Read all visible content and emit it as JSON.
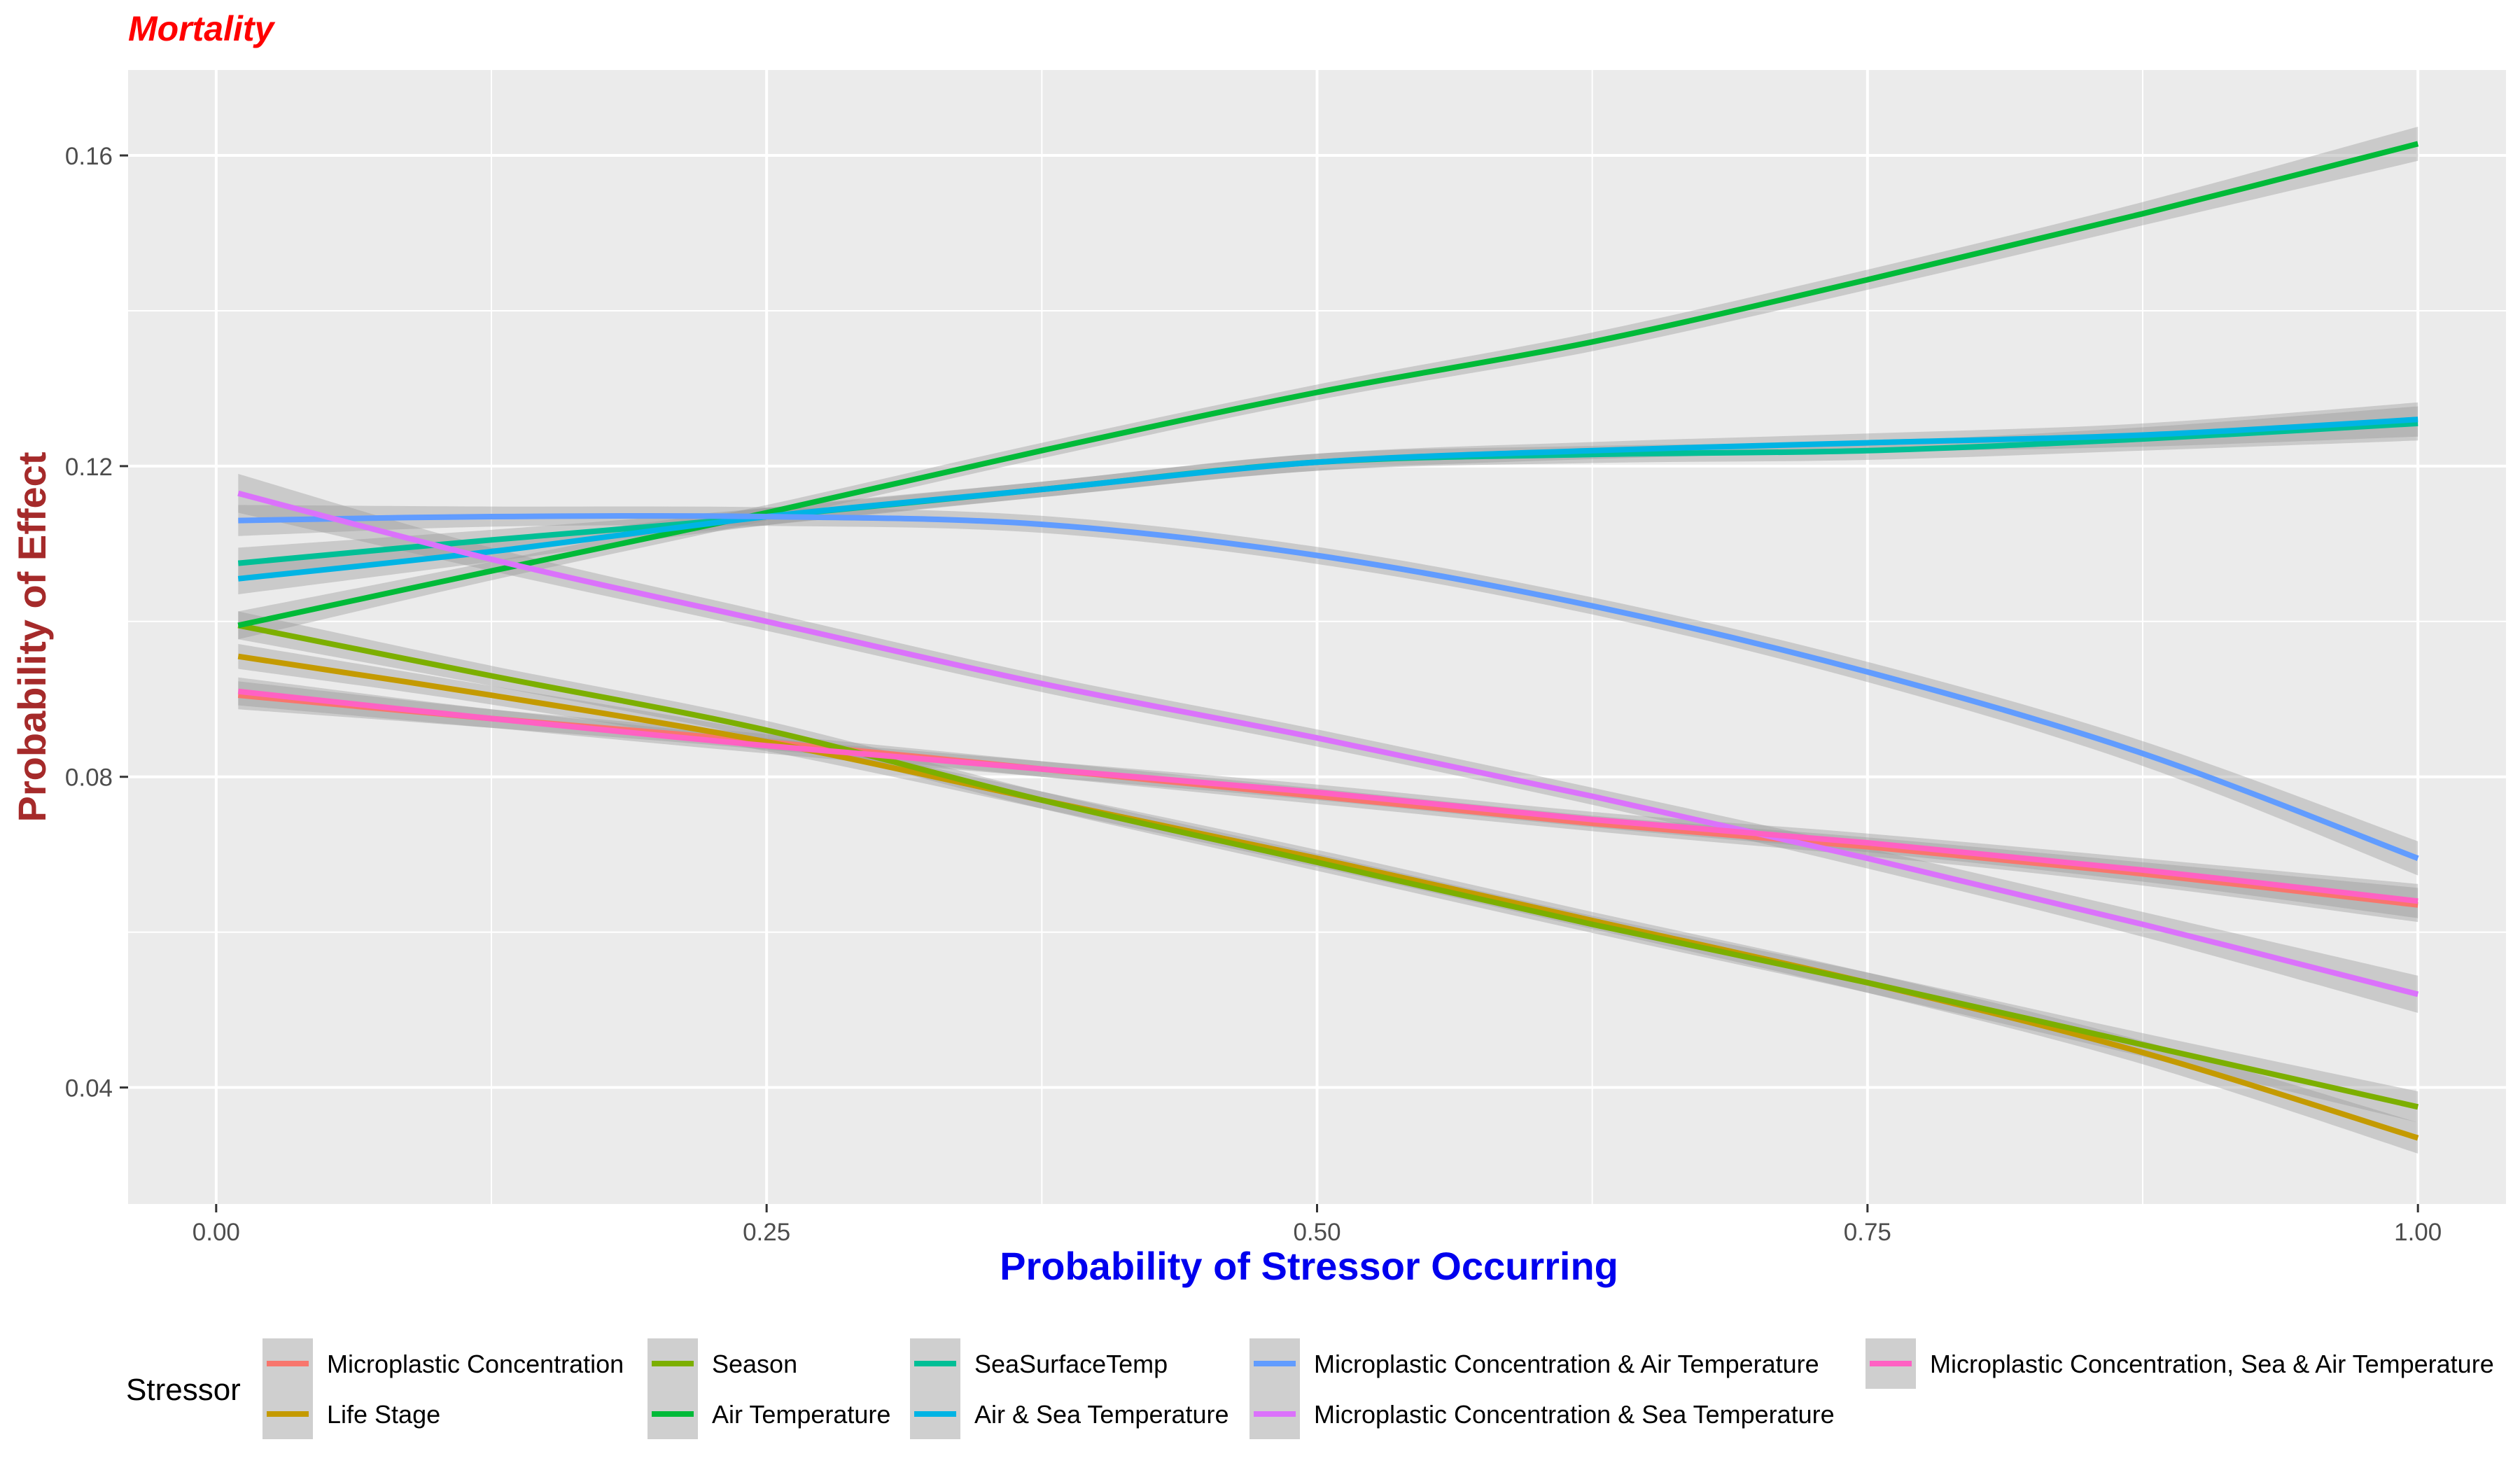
{
  "chart_data": {
    "type": "line",
    "title": "Mortality",
    "title_color": "#ff0000",
    "xlabel": "Probability of Stressor Occurring",
    "xlabel_color": "#0000ee",
    "ylabel": "Probability of Effect",
    "ylabel_color": "#a52a2a",
    "xlim": [
      -0.04,
      1.04
    ],
    "ylim": [
      0.025,
      0.171
    ],
    "xticks": [
      0.0,
      0.25,
      0.5,
      0.75,
      1.0
    ],
    "xtick_labels": [
      "0.00",
      "0.25",
      "0.50",
      "0.75",
      "1.00"
    ],
    "yticks": [
      0.04,
      0.08,
      0.12,
      0.16
    ],
    "ytick_labels": [
      "0.04",
      "0.08",
      "0.12",
      "0.16"
    ],
    "grid": true,
    "panel_background": "#ebebeb",
    "confidence_band": true,
    "legend": {
      "title": "Stressor",
      "placement": "bottom"
    },
    "x": [
      0.01,
      0.125,
      0.25,
      0.375,
      0.5,
      0.625,
      0.75,
      0.875,
      1.0
    ],
    "series": [
      {
        "name": "Microplastic Concentration",
        "color": "#f8766d",
        "values": [
          0.0905,
          0.0875,
          0.0845,
          0.081,
          0.0775,
          0.074,
          0.071,
          0.0675,
          0.0635
        ],
        "band": [
          0.0018,
          0.0012,
          0.001,
          0.001,
          0.001,
          0.001,
          0.0012,
          0.0015,
          0.0022
        ]
      },
      {
        "name": "Life Stage",
        "color": "#c49a00",
        "values": [
          0.0955,
          0.0905,
          0.0845,
          0.077,
          0.0695,
          0.0615,
          0.0535,
          0.0445,
          0.0335
        ],
        "band": [
          0.0016,
          0.0012,
          0.0012,
          0.0011,
          0.0011,
          0.0011,
          0.0013,
          0.0015,
          0.002
        ]
      },
      {
        "name": "Season",
        "color": "#7caf00",
        "values": [
          0.0995,
          0.093,
          0.086,
          0.077,
          0.069,
          0.061,
          0.0535,
          0.0455,
          0.0375
        ],
        "band": [
          0.0018,
          0.0013,
          0.0012,
          0.0011,
          0.0011,
          0.0011,
          0.0013,
          0.0015,
          0.002
        ]
      },
      {
        "name": "Air Temperature",
        "color": "#00ba38",
        "values": [
          0.0995,
          0.1065,
          0.114,
          0.122,
          0.1295,
          0.136,
          0.144,
          0.1525,
          0.1615
        ],
        "band": [
          0.0018,
          0.0012,
          0.001,
          0.001,
          0.001,
          0.0012,
          0.0013,
          0.0015,
          0.0022
        ]
      },
      {
        "name": "SeaSurfaceTemp",
        "color": "#00bf96",
        "values": [
          0.1075,
          0.1105,
          0.1135,
          0.117,
          0.1205,
          0.1215,
          0.122,
          0.1235,
          0.1255
        ],
        "band": [
          0.002,
          0.0013,
          0.0011,
          0.001,
          0.0011,
          0.0011,
          0.0012,
          0.0015,
          0.0022
        ]
      },
      {
        "name": "Air & Sea Temperature",
        "color": "#00b4e4",
        "values": [
          0.1055,
          0.109,
          0.1135,
          0.117,
          0.1205,
          0.122,
          0.123,
          0.124,
          0.126
        ],
        "band": [
          0.002,
          0.0013,
          0.0011,
          0.001,
          0.0011,
          0.0011,
          0.0012,
          0.0015,
          0.0022
        ]
      },
      {
        "name": "Microplastic Concentration & Air Temperature",
        "color": "#619cff",
        "values": [
          0.113,
          0.1135,
          0.1135,
          0.1125,
          0.1085,
          0.102,
          0.0935,
          0.083,
          0.0695
        ],
        "band": [
          0.002,
          0.0013,
          0.0012,
          0.0011,
          0.0011,
          0.0011,
          0.0013,
          0.0016,
          0.0022
        ]
      },
      {
        "name": "Microplastic Concentration & Sea Temperature",
        "color": "#db72fb",
        "values": [
          0.1165,
          0.108,
          0.1,
          0.092,
          0.085,
          0.0775,
          0.0695,
          0.061,
          0.052
        ],
        "band": [
          0.0025,
          0.0015,
          0.0012,
          0.0011,
          0.0011,
          0.0011,
          0.0013,
          0.0016,
          0.0024
        ]
      },
      {
        "name": "Microplastic Concentration, Sea & Air Temperature",
        "color": "#ff61c3",
        "values": [
          0.091,
          0.0875,
          0.084,
          0.081,
          0.078,
          0.0745,
          0.0715,
          0.068,
          0.064
        ],
        "band": [
          0.0018,
          0.0012,
          0.001,
          0.001,
          0.001,
          0.001,
          0.0012,
          0.0015,
          0.0022
        ]
      }
    ]
  }
}
